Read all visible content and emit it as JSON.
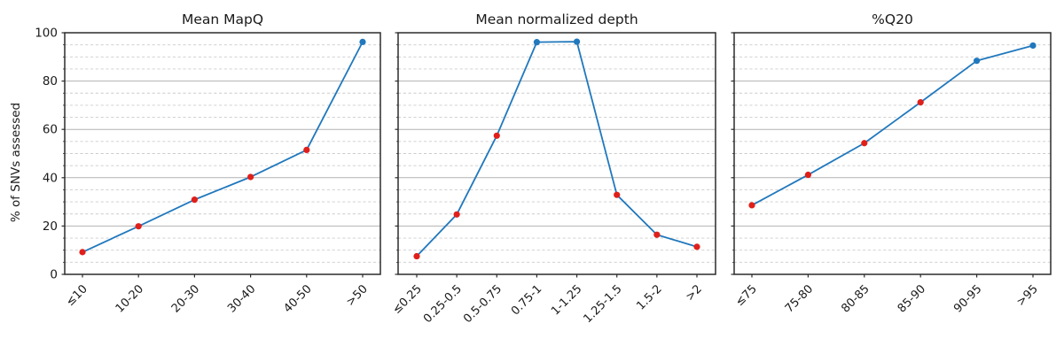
{
  "figure": {
    "ylabel": "% of SNVs assessed",
    "background": "#ffffff",
    "colors": {
      "line": "#2078bd",
      "marker_red": "#e01f1a",
      "marker_blue": "#2078bd",
      "grid_major": "#b2b2b2",
      "grid_minor": "#cccccc",
      "spine": "#2b2b2b",
      "text": "#1a1a1a"
    }
  },
  "chart_data": [
    {
      "type": "line",
      "title": "Mean MapQ",
      "categories": [
        "≤10",
        "10-20",
        "20-30",
        "30-40",
        "40-50",
        ">50"
      ],
      "values": [
        9.2,
        19.9,
        30.9,
        40.3,
        51.5,
        96.2
      ],
      "marker_colors": [
        "#e01f1a",
        "#e01f1a",
        "#e01f1a",
        "#e01f1a",
        "#e01f1a",
        "#2078bd"
      ],
      "line_color": "#2078bd",
      "xlabel": "",
      "ylabel": "% of SNVs assessed",
      "ylim": [
        0,
        100
      ],
      "yticks": [
        0,
        20,
        40,
        60,
        80,
        100
      ],
      "minor_ytick_interval": 5,
      "grid": "major-solid-minor-dashed",
      "legend": "none",
      "show_ytick_labels": true
    },
    {
      "type": "line",
      "title": "Mean normalized depth",
      "categories": [
        "≤0.25",
        "0.25-0.5",
        "0.5-0.75",
        "0.75-1",
        "1-1.25",
        "1.25-1.5",
        "1.5-2",
        ">2"
      ],
      "values": [
        7.5,
        24.8,
        57.4,
        96.1,
        96.3,
        32.9,
        16.4,
        11.4
      ],
      "marker_colors": [
        "#e01f1a",
        "#e01f1a",
        "#e01f1a",
        "#2078bd",
        "#2078bd",
        "#e01f1a",
        "#e01f1a",
        "#e01f1a"
      ],
      "line_color": "#2078bd",
      "xlabel": "",
      "ylabel": "",
      "ylim": [
        0,
        100
      ],
      "yticks": [
        0,
        20,
        40,
        60,
        80,
        100
      ],
      "minor_ytick_interval": 5,
      "grid": "major-solid-minor-dashed",
      "legend": "none",
      "show_ytick_labels": false
    },
    {
      "type": "line",
      "title": "%Q20",
      "categories": [
        "≤75",
        "75-80",
        "80-85",
        "85-90",
        "90-95",
        ">95"
      ],
      "values": [
        28.6,
        41.2,
        54.3,
        71.2,
        88.4,
        94.7
      ],
      "marker_colors": [
        "#e01f1a",
        "#e01f1a",
        "#e01f1a",
        "#e01f1a",
        "#2078bd",
        "#2078bd"
      ],
      "line_color": "#2078bd",
      "xlabel": "",
      "ylabel": "",
      "ylim": [
        0,
        100
      ],
      "yticks": [
        0,
        20,
        40,
        60,
        80,
        100
      ],
      "minor_ytick_interval": 5,
      "grid": "major-solid-minor-dashed",
      "legend": "none",
      "show_ytick_labels": false
    }
  ]
}
